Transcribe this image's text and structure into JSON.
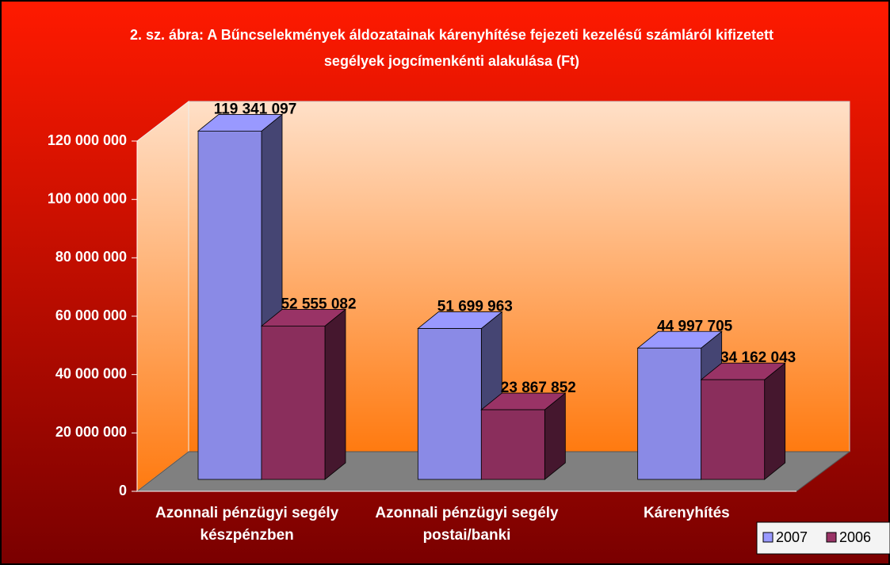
{
  "chart_data": {
    "type": "bar3d",
    "title": "2. sz. ábra: A Bűncselekmények áldozatainak kárenyhítése fejezeti kezelésű számláról kifizetett segélyek jogcímenkénti alakulása (Ft)",
    "categories": [
      "Azonnali pénzügyi segély készpénzben",
      "Azonnali pénzügyi segély postai/banki",
      "Kárenyhítés"
    ],
    "series": [
      {
        "name": "2007",
        "color": "#9999ff",
        "values": [
          119341097,
          51699963,
          44997705
        ],
        "value_labels": [
          "119 341 097",
          "51 699 963",
          "44 997 705"
        ]
      },
      {
        "name": "2006",
        "color": "#993366",
        "values": [
          52555082,
          23867852,
          34162043
        ],
        "value_labels": [
          "52 555 082",
          "23 867 852",
          "34 162 043"
        ]
      }
    ],
    "ylim": [
      0,
      120000000
    ],
    "yticks": [
      0,
      {
        "value": 20000000,
        "label": "20 000 000"
      },
      {
        "value": 40000000,
        "label": "40 000 000"
      },
      {
        "value": 60000000,
        "label": "60 000 000"
      },
      {
        "value": 80000000,
        "label": "80 000 000"
      },
      {
        "value": 100000000,
        "label": "100 000 000"
      },
      {
        "value": 120000000,
        "label": "120 000 000"
      }
    ],
    "legend": "bottom-right"
  }
}
